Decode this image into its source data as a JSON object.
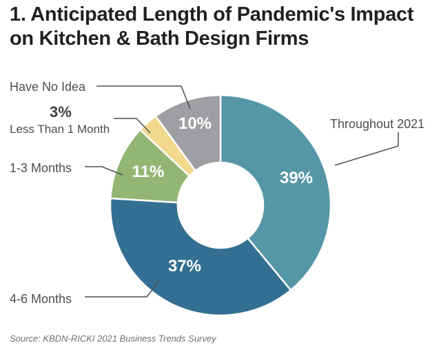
{
  "chart_data": {
    "type": "pie",
    "title": "1. Anticipated Length of Pandemic's Impact on Kitchen & Bath Design Firms",
    "source": "Source: KBDN-RICKI 2021 Business Trends Survey",
    "donut": true,
    "slices": [
      {
        "label": "Throughout 2021",
        "value": 39,
        "value_label": "39%",
        "color": "#5697a7"
      },
      {
        "label": "4-6 Months",
        "value": 37,
        "value_label": "37%",
        "color": "#336f92"
      },
      {
        "label": "1-3 Months",
        "value": 11,
        "value_label": "11%",
        "color": "#94b675"
      },
      {
        "label": "Less Than 1 Month",
        "value": 3,
        "value_label": "3%",
        "color": "#f2d98e"
      },
      {
        "label": "Have No Idea",
        "value": 10,
        "value_label": "10%",
        "color": "#9d9fa2"
      }
    ]
  }
}
